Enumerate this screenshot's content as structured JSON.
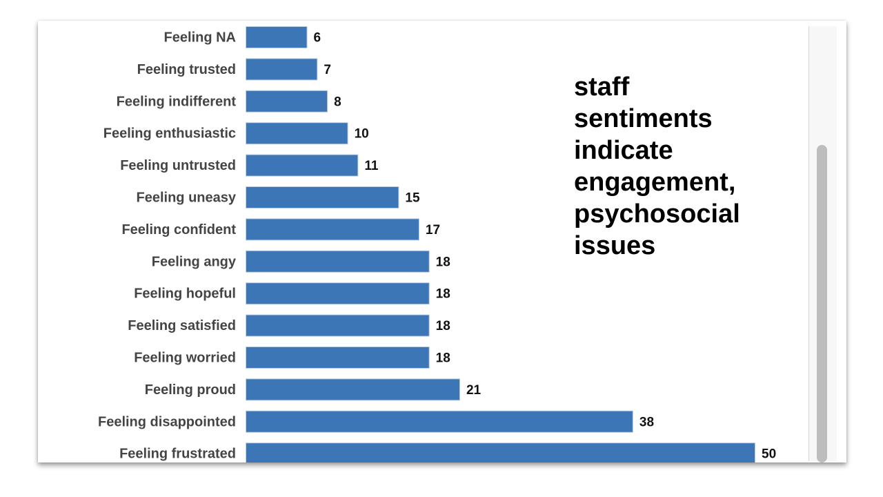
{
  "annotation": "staff\nsentiments\nindicate\nengagement,\npsychosocial\nissues",
  "colors": {
    "bar": "#3c76b6",
    "bar_edge": "#b9cde3",
    "category_text": "#444444",
    "value_text": "#111111"
  },
  "chart_data": {
    "type": "bar",
    "orientation": "horizontal",
    "categories": [
      "Feeling NA",
      "Feeling trusted",
      "Feeling indifferent",
      "Feeling enthusiastic",
      "Feeling untrusted",
      "Feeling uneasy",
      "Feeling confident",
      "Feeling angy",
      "Feeling hopeful",
      "Feeling satisfied",
      "Feeling worried",
      "Feeling proud",
      "Feeling disappointed",
      "Feeling frustrated"
    ],
    "values": [
      6,
      7,
      8,
      10,
      11,
      15,
      17,
      18,
      18,
      18,
      18,
      21,
      38,
      50
    ],
    "xlim": [
      0,
      50
    ],
    "grid": false,
    "data_labels": true
  }
}
